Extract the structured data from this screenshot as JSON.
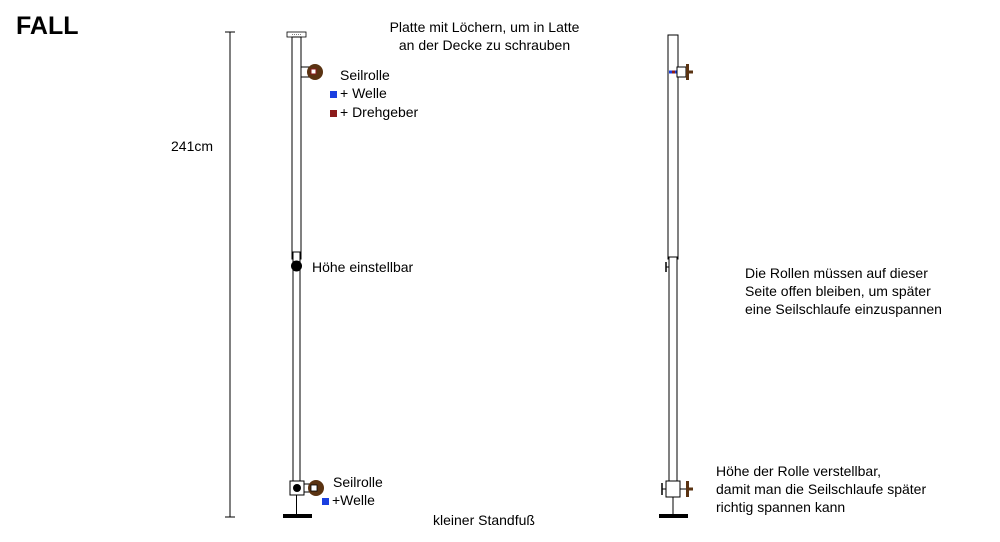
{
  "title": "FALL",
  "labels": {
    "plate_line1": "Platte mit Löchern, um in Latte",
    "plate_line2": "an der Decke zu schrauben",
    "pulley_top": "Seilrolle",
    "shaft_top": "+ Welle",
    "encoder_top": "+ Drehgeber",
    "height_dim": "241cm",
    "adjustable": "Höhe einstellbar",
    "pulley_bottom": "Seilrolle",
    "shaft_bottom": "+Welle",
    "foot": "kleiner Standfuß",
    "note_line1": "Die Rollen müssen auf dieser",
    "note_line2": "Seite offen bleiben, um später",
    "note_line3": "eine Seilschlaufe einzuspannen",
    "roller_line1": "Höhe der Rolle verstellbar,",
    "roller_line2": "damit man die Seilschlaufe später",
    "roller_line3": "richtig spannen kann"
  },
  "colors": {
    "shaft_marker": "#1a3fe0",
    "encoder_marker": "#8b1a1a",
    "pulley": "#5a3312",
    "line": "#000000"
  }
}
